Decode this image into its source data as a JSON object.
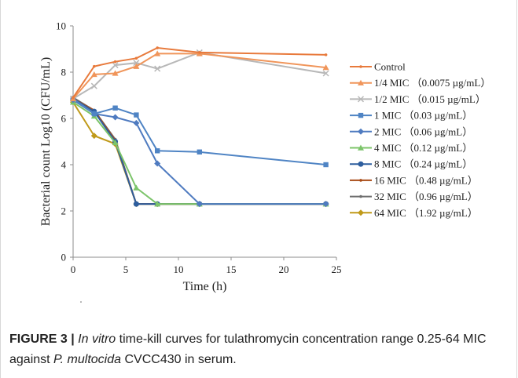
{
  "chart_data": {
    "type": "line",
    "xlabel": "Time (h)",
    "ylabel": "Bacterial count Log10 (CFU/mL)",
    "xlim": [
      0,
      25
    ],
    "ylim": [
      0,
      10
    ],
    "x_ticks": [
      "0",
      "5",
      "10",
      "15",
      "20",
      "25"
    ],
    "y_ticks": [
      "0",
      "2",
      "4",
      "6",
      "8",
      "10"
    ],
    "x": [
      0,
      2,
      4,
      6,
      8,
      12,
      24
    ],
    "grid": false,
    "legend_position": "right",
    "series": [
      {
        "name": "Control",
        "color": "#E87A3C",
        "marker": "none",
        "values": [
          6.9,
          8.25,
          8.45,
          8.6,
          9.05,
          8.85,
          8.75
        ]
      },
      {
        "name": "1/4 MIC （0.0075 µg/mL）",
        "color": "#F0955A",
        "marker": "triangle",
        "values": [
          6.85,
          7.9,
          7.95,
          8.25,
          8.8,
          8.8,
          8.2
        ]
      },
      {
        "name": "1/2 MIC （0.015 µg/mL）",
        "color": "#B8B8B8",
        "marker": "x",
        "values": [
          6.85,
          7.4,
          8.3,
          8.4,
          8.15,
          8.85,
          7.95
        ]
      },
      {
        "name": "1 MIC （0.03 µg/mL）",
        "color": "#4F84C4",
        "marker": "square",
        "values": [
          6.85,
          6.2,
          6.45,
          6.15,
          4.6,
          4.55,
          4.0
        ]
      },
      {
        "name": "2 MIC （0.06 µg/mL）",
        "color": "#4F7BC0",
        "marker": "diamond",
        "values": [
          6.8,
          6.2,
          6.05,
          5.8,
          4.05,
          2.3,
          2.3
        ]
      },
      {
        "name": "4 MIC （0.12 µg/mL）",
        "color": "#7CC46A",
        "marker": "triangle",
        "values": [
          6.7,
          6.1,
          4.95,
          3.0,
          2.3,
          2.3,
          2.3
        ]
      },
      {
        "name": "8 MIC （0.24 µg/mL）",
        "color": "#2E5E9E",
        "marker": "circle",
        "values": [
          6.85,
          6.3,
          5.0,
          2.3,
          2.3,
          2.3,
          2.3
        ]
      },
      {
        "name": "16 MIC （0.48 µg/mL）",
        "color": "#A84B16",
        "marker": "none",
        "values": [
          6.85,
          6.35,
          5.05,
          2.3,
          2.3,
          2.3,
          2.3
        ]
      },
      {
        "name": "32 MIC （0.96 µg/mL）",
        "color": "#6E6E6E",
        "marker": "none",
        "values": [
          6.9,
          6.35,
          5.1,
          2.3,
          2.3,
          2.3,
          2.3
        ]
      },
      {
        "name": "64 MIC （1.92 µg/mL）",
        "color": "#C09A1A",
        "marker": "diamond",
        "values": [
          6.7,
          5.25,
          4.9,
          2.3,
          2.3,
          2.3,
          2.3
        ]
      }
    ]
  },
  "caption": {
    "label": "FIGURE 3 |",
    "italic_1": "In vitro",
    "text_1": " time-kill curves for tulathromycin concentration range 0.25-64 MIC against ",
    "italic_2": "P. multocida",
    "text_2": " CVCC430 in serum."
  }
}
